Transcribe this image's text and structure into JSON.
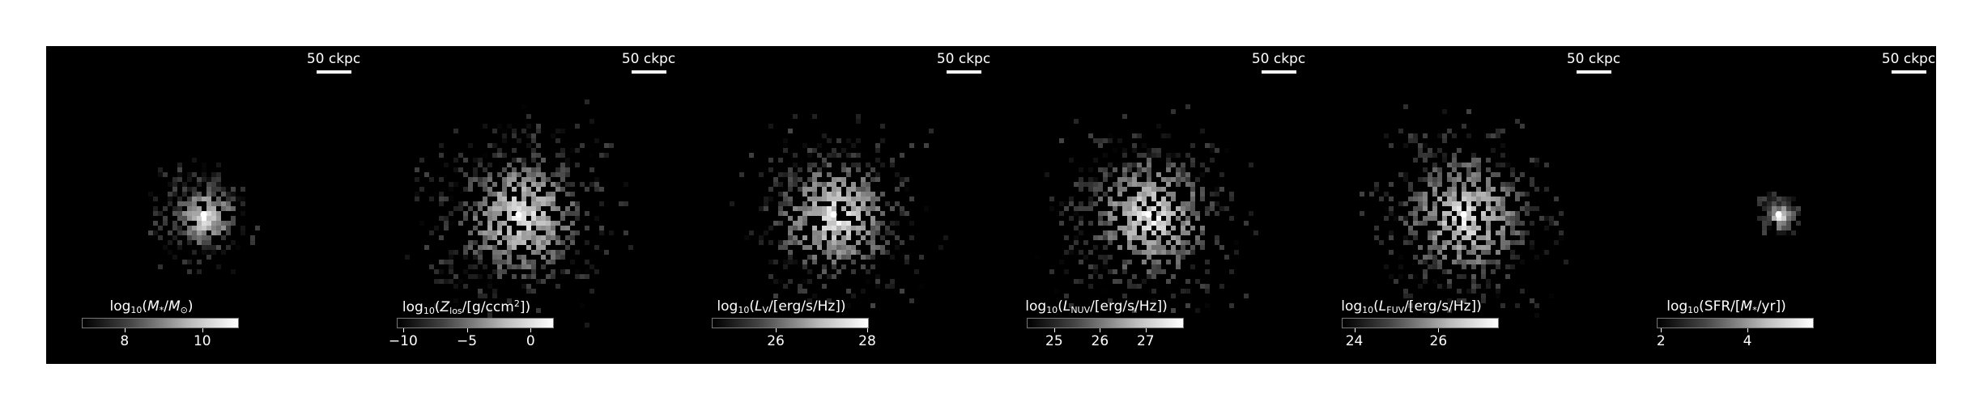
{
  "scalebar_label": "50 ckpc",
  "chart_data": [
    {
      "type": "heatmap",
      "colormap": "gray",
      "colorbar": {
        "label": "log10(M*/M⊙)",
        "ticks": [
          8,
          10
        ],
        "range": [
          6.9,
          10.9
        ]
      },
      "center": [
        0.5,
        0.53
      ],
      "spread": 0.09,
      "density": 0.35
    },
    {
      "type": "heatmap",
      "colormap": "gray",
      "colorbar": {
        "label": "log10(Zlos/[g/ccm^2])",
        "ticks": [
          -10,
          -5,
          0
        ],
        "range": [
          -10.5,
          1.7
        ]
      },
      "center": [
        0.5,
        0.53
      ],
      "spread": 0.18,
      "density": 0.75
    },
    {
      "type": "heatmap",
      "colormap": "gray",
      "colorbar": {
        "label": "log10(LV/[erg/s/Hz])",
        "ticks": [
          26,
          28
        ],
        "range": [
          24.6,
          28.0
        ]
      },
      "center": [
        0.5,
        0.53
      ],
      "spread": 0.17,
      "density": 0.6
    },
    {
      "type": "heatmap",
      "colormap": "gray",
      "colorbar": {
        "label": "log10(LNUV/[erg/s/Hz])",
        "ticks": [
          25,
          26,
          27
        ],
        "range": [
          24.4,
          27.8
        ]
      },
      "center": [
        0.5,
        0.53
      ],
      "spread": 0.18,
      "density": 0.65
    },
    {
      "type": "heatmap",
      "colormap": "gray",
      "colorbar": {
        "label": "log10(LFUV/[erg/s/Hz])",
        "ticks": [
          24,
          26
        ],
        "range": [
          23.7,
          27.4
        ]
      },
      "center": [
        0.5,
        0.53
      ],
      "spread": 0.18,
      "density": 0.65
    },
    {
      "type": "heatmap",
      "colormap": "gray",
      "colorbar": {
        "label": "log10(SFR/[M*/yr])",
        "ticks": [
          2,
          4
        ],
        "range": [
          1.9,
          5.5
        ]
      },
      "center": [
        0.5,
        0.53
      ],
      "spread": 0.04,
      "density": 0.2
    }
  ]
}
